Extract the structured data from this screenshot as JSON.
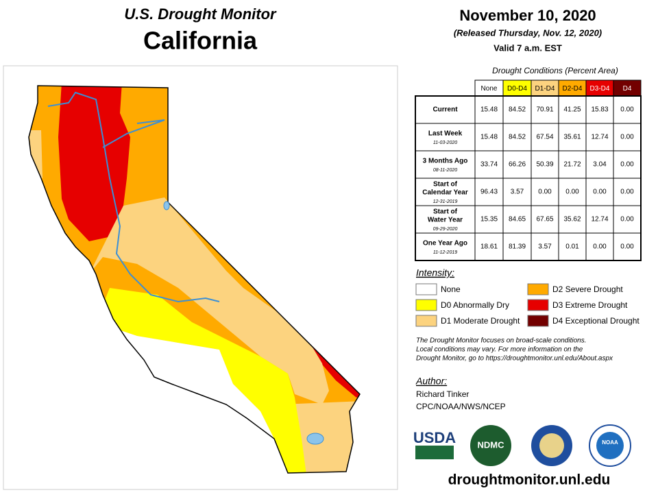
{
  "header": {
    "title": "U.S. Drought Monitor",
    "state": "California",
    "date": "November 10, 2020",
    "released": "(Released Thursday, Nov. 12, 2020)",
    "valid": "Valid 7 a.m. EST"
  },
  "table": {
    "caption": "Drought Conditions (Percent Area)",
    "columns": [
      "None",
      "D0-D4",
      "D1-D4",
      "D2-D4",
      "D3-D4",
      "D4"
    ],
    "rows": [
      {
        "label": [
          "Current"
        ],
        "values": [
          "15.48",
          "84.52",
          "70.91",
          "41.25",
          "15.83",
          "0.00"
        ]
      },
      {
        "label": [
          "Last Week"
        ],
        "date": "11-03-2020",
        "values": [
          "15.48",
          "84.52",
          "67.54",
          "35.61",
          "12.74",
          "0.00"
        ]
      },
      {
        "label": [
          "3 Months Ago"
        ],
        "date": "08-11-2020",
        "values": [
          "33.74",
          "66.26",
          "50.39",
          "21.72",
          "3.04",
          "0.00"
        ]
      },
      {
        "label": [
          "Start of",
          "Calendar Year"
        ],
        "date": "12-31-2019",
        "values": [
          "96.43",
          "3.57",
          "0.00",
          "0.00",
          "0.00",
          "0.00"
        ]
      },
      {
        "label": [
          "Start of",
          "Water Year"
        ],
        "date": "09-29-2020",
        "values": [
          "15.35",
          "84.65",
          "67.65",
          "35.62",
          "12.74",
          "0.00"
        ]
      },
      {
        "label": [
          "One Year Ago"
        ],
        "date": "11-12-2019",
        "values": [
          "18.61",
          "81.39",
          "3.57",
          "0.01",
          "0.00",
          "0.00"
        ]
      }
    ]
  },
  "legend": {
    "title": "Intensity:",
    "items": [
      "None",
      "D0 Abnormally Dry",
      "D1 Moderate Drought",
      "D2 Severe Drought",
      "D3 Extreme Drought",
      "D4 Exceptional Drought"
    ]
  },
  "note": [
    "The Drought Monitor focuses on broad-scale conditions.",
    "Local conditions may vary. For more information on the",
    "Drought Monitor, go to https://droughtmonitor.unl.edu/About.aspx"
  ],
  "author": {
    "heading": "Author:",
    "name": "Richard Tinker",
    "org": "CPC/NOAA/NWS/NCEP"
  },
  "logos": [
    "USDA",
    "NDMC",
    "NOAA"
  ],
  "url": "droughtmonitor.unl.edu"
}
